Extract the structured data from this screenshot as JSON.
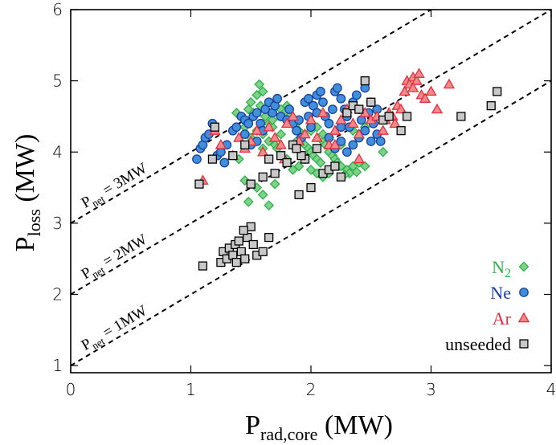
{
  "chart_data": {
    "type": "scatter",
    "xlabel": {
      "main": "P",
      "sub": "rad,core",
      "unit": " (MW)"
    },
    "ylabel": {
      "main": "P",
      "sub": "loss",
      "unit": " (MW)"
    },
    "xlim": [
      0,
      4
    ],
    "ylim": [
      0.9,
      6.0
    ],
    "xticks": [
      0,
      1,
      2,
      3,
      4
    ],
    "yticks": [
      1,
      2,
      3,
      4,
      5,
      6
    ],
    "legend_position": "bottom-right",
    "reference_lines": [
      {
        "offset": 3,
        "label_main": "P",
        "label_sub": "net",
        "label_rest": " = 3MW"
      },
      {
        "offset": 2,
        "label_main": "P",
        "label_sub": "net",
        "label_rest": " = 2MW"
      },
      {
        "offset": 1,
        "label_main": "P",
        "label_sub": "net",
        "label_rest": " = 1MW"
      }
    ],
    "series": [
      {
        "name": "N",
        "name_sub": "2",
        "marker": "diamond",
        "color": "#2db34a",
        "fill": "#7fd18a",
        "points": [
          [
            1.38,
            4.55
          ],
          [
            1.42,
            4.5
          ],
          [
            1.45,
            4.45
          ],
          [
            1.48,
            4.6
          ],
          [
            1.5,
            4.7
          ],
          [
            1.52,
            4.55
          ],
          [
            1.55,
            4.8
          ],
          [
            1.57,
            4.95
          ],
          [
            1.6,
            4.85
          ],
          [
            1.58,
            4.65
          ],
          [
            1.62,
            4.5
          ],
          [
            1.65,
            4.4
          ],
          [
            1.68,
            4.35
          ],
          [
            1.55,
            4.3
          ],
          [
            1.5,
            4.2
          ],
          [
            1.45,
            4.35
          ],
          [
            1.6,
            4.25
          ],
          [
            1.65,
            4.15
          ],
          [
            1.7,
            4.1
          ],
          [
            1.72,
            4.05
          ],
          [
            1.75,
            4.6
          ],
          [
            1.78,
            4.55
          ],
          [
            1.8,
            4.65
          ],
          [
            1.82,
            4.5
          ],
          [
            1.85,
            4.45
          ],
          [
            1.88,
            4.4
          ],
          [
            1.9,
            4.3
          ],
          [
            1.92,
            4.2
          ],
          [
            1.95,
            4.1
          ],
          [
            1.98,
            4.05
          ],
          [
            2.0,
            4.0
          ],
          [
            2.02,
            3.95
          ],
          [
            2.05,
            3.9
          ],
          [
            2.08,
            3.85
          ],
          [
            2.1,
            4.15
          ],
          [
            2.12,
            4.1
          ],
          [
            2.15,
            4.0
          ],
          [
            2.18,
            3.95
          ],
          [
            2.2,
            3.9
          ],
          [
            2.22,
            3.85
          ],
          [
            2.0,
            4.3
          ],
          [
            2.05,
            4.35
          ],
          [
            2.1,
            4.25
          ],
          [
            2.15,
            4.2
          ],
          [
            2.25,
            3.8
          ],
          [
            2.3,
            3.75
          ],
          [
            2.35,
            3.8
          ],
          [
            2.4,
            3.85
          ],
          [
            2.45,
            3.8
          ],
          [
            2.38,
            3.72
          ],
          [
            2.32,
            3.7
          ],
          [
            2.28,
            3.68
          ],
          [
            2.15,
            3.7
          ],
          [
            2.1,
            3.65
          ],
          [
            2.05,
            3.7
          ],
          [
            2.0,
            3.75
          ],
          [
            1.95,
            3.9
          ],
          [
            1.9,
            3.8
          ],
          [
            1.85,
            3.75
          ],
          [
            1.4,
            3.9
          ],
          [
            1.45,
            3.6
          ],
          [
            1.55,
            3.5
          ],
          [
            1.6,
            3.4
          ],
          [
            1.65,
            3.25
          ],
          [
            1.48,
            3.3
          ],
          [
            1.7,
            3.55
          ],
          [
            1.8,
            3.9
          ],
          [
            1.75,
            4.25
          ],
          [
            1.6,
            4.05
          ],
          [
            2.6,
            4.0
          ],
          [
            2.45,
            4.35
          ],
          [
            2.35,
            4.3
          ],
          [
            2.25,
            4.1
          ],
          [
            1.88,
            4.15
          ],
          [
            1.68,
            4.45
          ]
        ]
      },
      {
        "name": "Ne",
        "name_sub": "",
        "marker": "circle",
        "color": "#1a3f9c",
        "fill": "#3f8fdb",
        "points": [
          [
            1.05,
            3.9
          ],
          [
            1.08,
            4.05
          ],
          [
            1.1,
            4.1
          ],
          [
            1.12,
            4.2
          ],
          [
            1.15,
            4.25
          ],
          [
            1.18,
            4.4
          ],
          [
            1.22,
            3.95
          ],
          [
            1.25,
            4.0
          ],
          [
            1.28,
            3.85
          ],
          [
            1.3,
            4.1
          ],
          [
            1.35,
            4.3
          ],
          [
            1.38,
            4.35
          ],
          [
            1.42,
            4.5
          ],
          [
            1.45,
            4.45
          ],
          [
            1.48,
            4.4
          ],
          [
            1.52,
            4.5
          ],
          [
            1.55,
            4.55
          ],
          [
            1.58,
            4.4
          ],
          [
            1.62,
            4.6
          ],
          [
            1.65,
            4.7
          ],
          [
            1.68,
            4.55
          ],
          [
            1.7,
            4.65
          ],
          [
            1.72,
            4.75
          ],
          [
            1.75,
            4.5
          ],
          [
            1.8,
            4.45
          ],
          [
            1.82,
            4.6
          ],
          [
            1.85,
            4.4
          ],
          [
            1.88,
            4.3
          ],
          [
            1.9,
            4.45
          ],
          [
            1.92,
            4.2
          ],
          [
            1.95,
            4.7
          ],
          [
            1.98,
            4.5
          ],
          [
            2.0,
            4.35
          ],
          [
            2.02,
            4.65
          ],
          [
            2.05,
            4.8
          ],
          [
            2.08,
            4.85
          ],
          [
            2.1,
            4.7
          ],
          [
            2.12,
            4.5
          ],
          [
            2.15,
            4.4
          ],
          [
            2.18,
            4.6
          ],
          [
            2.2,
            4.85
          ],
          [
            2.22,
            4.9
          ],
          [
            2.25,
            4.75
          ],
          [
            2.28,
            4.6
          ],
          [
            2.3,
            4.5
          ],
          [
            2.32,
            4.35
          ],
          [
            2.35,
            4.7
          ],
          [
            2.38,
            4.8
          ],
          [
            2.4,
            4.6
          ],
          [
            2.42,
            4.45
          ],
          [
            2.45,
            4.3
          ],
          [
            2.48,
            4.55
          ],
          [
            2.5,
            4.7
          ],
          [
            2.52,
            4.4
          ],
          [
            2.55,
            4.25
          ],
          [
            2.58,
            4.15
          ],
          [
            2.15,
            4.2
          ],
          [
            2.2,
            4.05
          ],
          [
            2.25,
            4.15
          ],
          [
            2.3,
            4.0
          ],
          [
            2.35,
            4.1
          ],
          [
            2.4,
            4.2
          ],
          [
            1.6,
            4.3
          ],
          [
            1.55,
            4.15
          ],
          [
            1.5,
            4.1
          ],
          [
            1.45,
            4.25
          ],
          [
            1.98,
            4.75
          ],
          [
            2.05,
            4.55
          ],
          [
            2.25,
            4.35
          ],
          [
            2.45,
            4.9
          ],
          [
            2.5,
            4.15
          ],
          [
            2.55,
            4.6
          ]
        ]
      },
      {
        "name": "Ar",
        "name_sub": "",
        "marker": "triangle",
        "color": "#e0303a",
        "fill": "#f08a8f",
        "points": [
          [
            1.1,
            3.6
          ],
          [
            1.2,
            4.3
          ],
          [
            1.25,
            4.1
          ],
          [
            1.35,
            3.95
          ],
          [
            1.4,
            4.2
          ],
          [
            1.45,
            4.05
          ],
          [
            1.5,
            4.15
          ],
          [
            1.55,
            4.3
          ],
          [
            1.6,
            4.0
          ],
          [
            1.65,
            4.35
          ],
          [
            1.7,
            4.2
          ],
          [
            1.75,
            4.1
          ],
          [
            1.78,
            3.9
          ],
          [
            1.8,
            4.4
          ],
          [
            1.85,
            4.5
          ],
          [
            1.9,
            4.15
          ],
          [
            1.95,
            4.25
          ],
          [
            2.0,
            4.45
          ],
          [
            2.05,
            4.2
          ],
          [
            2.1,
            4.55
          ],
          [
            2.15,
            4.1
          ],
          [
            2.2,
            4.3
          ],
          [
            2.25,
            4.45
          ],
          [
            2.3,
            4.6
          ],
          [
            2.35,
            4.4
          ],
          [
            2.4,
            4.25
          ],
          [
            2.45,
            4.55
          ],
          [
            2.5,
            4.45
          ],
          [
            2.55,
            4.5
          ],
          [
            2.6,
            4.3
          ],
          [
            2.65,
            4.55
          ],
          [
            2.68,
            4.5
          ],
          [
            2.7,
            4.4
          ],
          [
            2.72,
            4.65
          ],
          [
            2.75,
            4.6
          ],
          [
            2.78,
            4.85
          ],
          [
            2.8,
            5.0
          ],
          [
            2.82,
            4.95
          ],
          [
            2.85,
            5.05
          ],
          [
            2.88,
            5.0
          ],
          [
            2.9,
            5.1
          ],
          [
            2.92,
            4.8
          ],
          [
            2.95,
            4.75
          ],
          [
            3.0,
            4.85
          ],
          [
            3.05,
            4.6
          ],
          [
            3.15,
            4.95
          ],
          [
            2.62,
            4.45
          ],
          [
            2.4,
            3.9
          ],
          [
            2.2,
            4.1
          ],
          [
            2.85,
            4.9
          ]
        ]
      },
      {
        "name": "unseeded",
        "name_sub": "",
        "marker": "square",
        "color": "#000000",
        "fill": "#c8c8c8",
        "points": [
          [
            1.1,
            2.4
          ],
          [
            1.25,
            2.45
          ],
          [
            1.27,
            2.6
          ],
          [
            1.3,
            2.5
          ],
          [
            1.32,
            2.65
          ],
          [
            1.35,
            2.55
          ],
          [
            1.37,
            2.7
          ],
          [
            1.4,
            2.75
          ],
          [
            1.42,
            2.6
          ],
          [
            1.45,
            2.5
          ],
          [
            1.47,
            2.8
          ],
          [
            1.5,
            2.95
          ],
          [
            1.52,
            2.7
          ],
          [
            1.55,
            2.55
          ],
          [
            1.6,
            2.6
          ],
          [
            1.65,
            2.8
          ],
          [
            1.38,
            2.45
          ],
          [
            1.44,
            2.9
          ],
          [
            1.07,
            3.55
          ],
          [
            1.18,
            3.9
          ],
          [
            1.2,
            4.35
          ],
          [
            1.35,
            3.95
          ],
          [
            1.45,
            4.1
          ],
          [
            1.5,
            3.55
          ],
          [
            1.6,
            3.65
          ],
          [
            1.65,
            3.9
          ],
          [
            1.7,
            3.7
          ],
          [
            1.75,
            3.95
          ],
          [
            1.8,
            3.85
          ],
          [
            1.85,
            4.1
          ],
          [
            1.9,
            3.4
          ],
          [
            1.95,
            3.9
          ],
          [
            2.0,
            3.5
          ],
          [
            2.05,
            4.05
          ],
          [
            2.1,
            3.7
          ],
          [
            2.15,
            3.75
          ],
          [
            2.2,
            3.8
          ],
          [
            2.25,
            3.65
          ],
          [
            2.3,
            4.55
          ],
          [
            2.35,
            4.65
          ],
          [
            2.4,
            4.6
          ],
          [
            2.45,
            5.0
          ],
          [
            2.5,
            4.7
          ],
          [
            2.6,
            4.45
          ],
          [
            2.65,
            4.5
          ],
          [
            2.75,
            4.3
          ],
          [
            2.8,
            4.5
          ],
          [
            3.25,
            4.5
          ],
          [
            3.5,
            4.65
          ],
          [
            3.55,
            4.85
          ],
          [
            1.92,
            3.95
          ],
          [
            1.88,
            4.05
          ]
        ]
      }
    ]
  }
}
